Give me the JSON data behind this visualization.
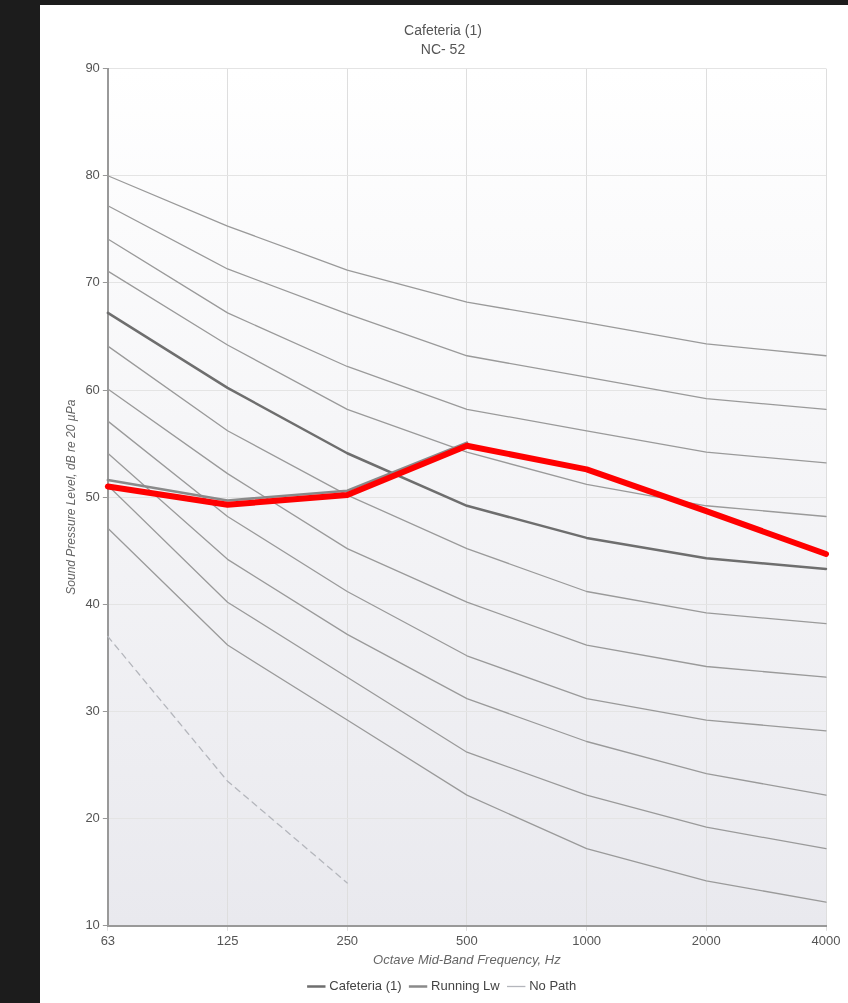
{
  "chart_data": {
    "type": "line",
    "title": "Cafeteria (1)",
    "subtitle": "NC- 52",
    "xlabel": "Octave Mid-Band Frequency, Hz",
    "ylabel": "Sound Pressure Level, dB re 20 µPa",
    "categories": [
      "63",
      "125",
      "250",
      "500",
      "1000",
      "2000",
      "4000"
    ],
    "ylim": [
      10,
      90
    ],
    "yticks": [
      10,
      20,
      30,
      40,
      50,
      60,
      70,
      80,
      90
    ],
    "grid": true,
    "legend": "bottom",
    "marker": "none",
    "line_style": "solid",
    "series": [
      {
        "color": "#9a9a9a",
        "values": [
          80,
          75.3,
          71.2,
          68.2,
          66.3,
          64.3,
          63.2
        ]
      },
      {
        "color": "#9a9a9a",
        "values": [
          77.2,
          71.3,
          67.1,
          63.2,
          61.2,
          59.2,
          58.2
        ]
      },
      {
        "color": "#9a9a9a",
        "values": [
          74.1,
          67.2,
          62.2,
          58.2,
          56.2,
          54.2,
          53.2
        ]
      },
      {
        "color": "#9a9a9a",
        "values": [
          71.1,
          64.2,
          58.2,
          54.2,
          51.2,
          49.2,
          48.2
        ]
      },
      {
        "color": "#9a9a9a",
        "values": [
          64.1,
          56.2,
          50.2,
          45.2,
          41.2,
          39.2,
          38.2
        ]
      },
      {
        "color": "#9a9a9a",
        "values": [
          60.1,
          52.2,
          45.2,
          40.2,
          36.2,
          34.2,
          33.2
        ]
      },
      {
        "color": "#9a9a9a",
        "values": [
          57.1,
          48.2,
          41.2,
          35.2,
          31.2,
          29.2,
          28.2
        ]
      },
      {
        "color": "#9a9a9a",
        "values": [
          54.1,
          44.2,
          37.2,
          31.2,
          27.2,
          24.2,
          22.2
        ]
      },
      {
        "color": "#9a9a9a",
        "values": [
          51.1,
          40.2,
          33.2,
          26.2,
          22.2,
          19.2,
          17.2
        ]
      },
      {
        "color": "#9a9a9a",
        "values": [
          47.1,
          36.2,
          29.2,
          22.2,
          17.2,
          14.2,
          12.2
        ]
      },
      {
        "name": "Cafeteria (1)",
        "color": "#6e6e6e",
        "values": [
          67.2,
          60.2,
          54.1,
          49.2,
          46.2,
          44.3,
          43.3
        ]
      },
      {
        "name": "Running Lw",
        "color": "#8a8a8a",
        "values": [
          51.6,
          49.7,
          50.6,
          55.1,
          null,
          null,
          null
        ]
      },
      {
        "name": "No Path",
        "color": "#b4b6bc",
        "line_style": "dashed",
        "values": [
          37,
          23.5,
          14,
          null,
          null,
          null,
          null
        ]
      },
      {
        "color": "#ff0000",
        "values": [
          51,
          49.3,
          50.2,
          54.8,
          52.6,
          48.7,
          44.7
        ]
      }
    ]
  }
}
